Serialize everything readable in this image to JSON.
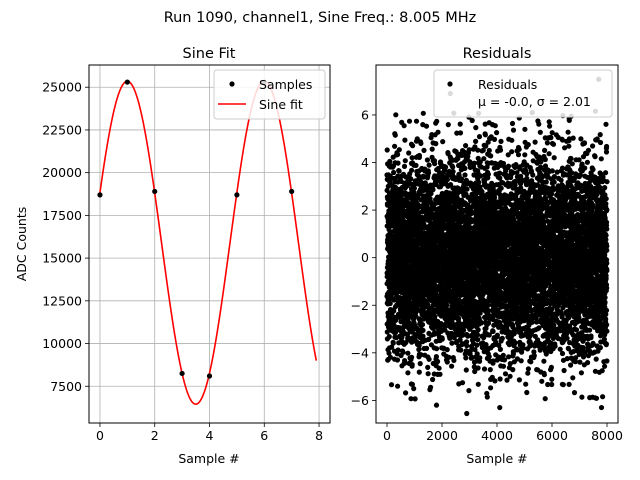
{
  "figure": {
    "suptitle": "Run 1090, channel1, Sine Freq.: 8.005 MHz"
  },
  "chart_data": [
    {
      "type": "line",
      "title": "Sine Fit",
      "xlabel": "Sample #",
      "ylabel": "ADC Counts",
      "xlim": [
        -0.4,
        8.4
      ],
      "ylim": [
        5350,
        26300
      ],
      "xticks": [
        0,
        2,
        4,
        6,
        8
      ],
      "xtick_labels": [
        "0",
        "2",
        "4",
        "6",
        "8"
      ],
      "yticks": [
        7500,
        10000,
        12500,
        15000,
        17500,
        20000,
        22500,
        25000
      ],
      "ytick_labels": [
        "7500",
        "10000",
        "12500",
        "15000",
        "17500",
        "20000",
        "22500",
        "25000"
      ],
      "grid": true,
      "legend_position": "top-right",
      "series": [
        {
          "name": "Samples",
          "kind": "scatter",
          "color": "#000000",
          "x": [
            0,
            1,
            2,
            3,
            4,
            5,
            6,
            7
          ],
          "y": [
            18700,
            25300,
            18900,
            8250,
            8100,
            18700,
            25300,
            18900
          ]
        },
        {
          "name": "Sine fit",
          "kind": "line",
          "color": "#ff0000",
          "model": {
            "offset": 15900,
            "amplitude": 9450,
            "frequency_cycles_per_sample": 0.2,
            "phase_rad": 0.316
          },
          "x_range": [
            0,
            7.9
          ]
        }
      ]
    },
    {
      "type": "scatter",
      "title": "Residuals",
      "xlabel": "Sample #",
      "ylabel": "",
      "xlim": [
        -400,
        8400
      ],
      "ylim": [
        -6.95,
        8.1
      ],
      "xticks": [
        0,
        2000,
        4000,
        6000,
        8000
      ],
      "xtick_labels": [
        "0",
        "2000",
        "4000",
        "6000",
        "8000"
      ],
      "yticks": [
        -6,
        -4,
        -2,
        0,
        2,
        4,
        6
      ],
      "ytick_labels": [
        "−6",
        "−4",
        "−2",
        "0",
        "2",
        "4",
        "6"
      ],
      "grid": false,
      "legend_position": "top-right",
      "series": [
        {
          "name": "Residuals",
          "legend_sublabel": "μ = -0.0, σ = 2.01",
          "color": "#000000",
          "n_points": 8000,
          "x_range": [
            0,
            7999
          ],
          "distribution": {
            "mean": 0.0,
            "std": 2.01
          },
          "extremes": [
            [
              2300,
              6.9
            ],
            [
              7700,
              7.5
            ],
            [
              2900,
              -6.55
            ],
            [
              7800,
              -6.3
            ],
            [
              1800,
              -6.2
            ],
            [
              4100,
              -6.3
            ]
          ]
        }
      ]
    }
  ]
}
